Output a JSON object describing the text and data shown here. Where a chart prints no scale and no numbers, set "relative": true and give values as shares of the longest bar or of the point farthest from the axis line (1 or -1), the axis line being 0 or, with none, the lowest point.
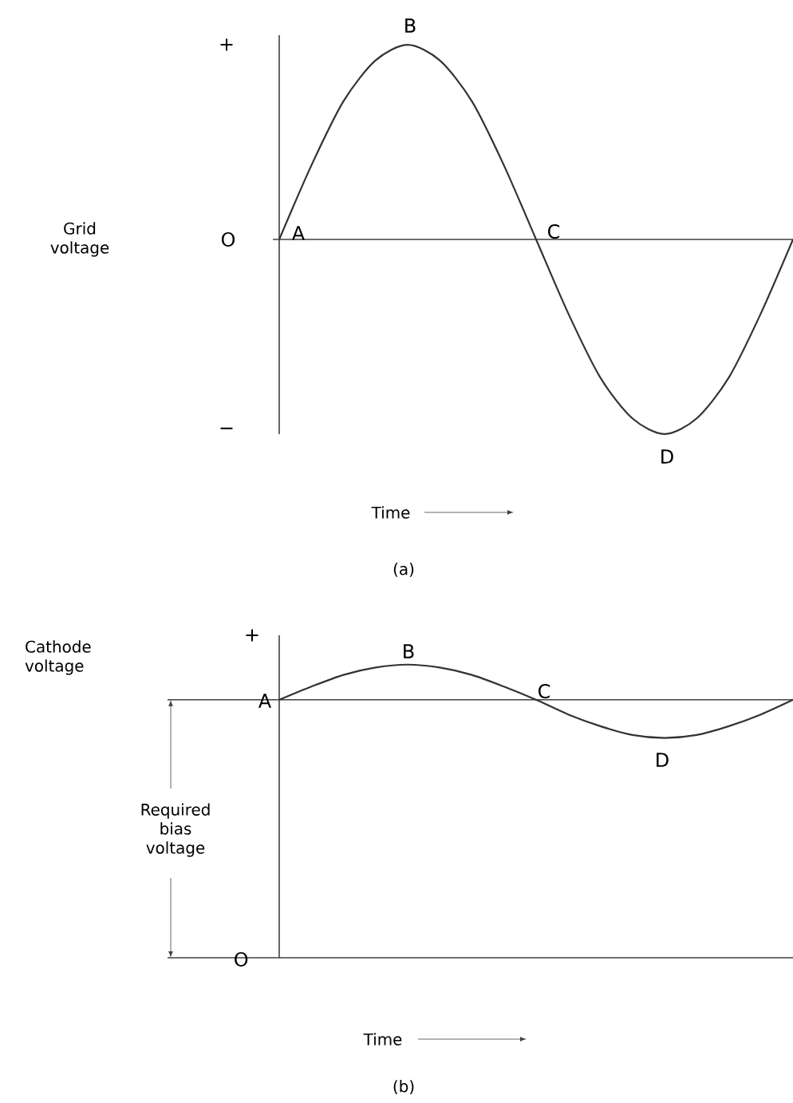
{
  "chart_data": [
    {
      "type": "line",
      "relative": true,
      "title": "(a)",
      "ylabel": "Grid voltage",
      "xlabel": "Time",
      "categories": [
        null,
        null,
        null,
        null,
        null,
        null,
        null,
        null,
        null,
        null,
        null,
        null,
        null,
        null,
        null,
        null,
        null
      ],
      "series": [
        {
          "color": "#333333",
          "values": [
            0,
            0.38,
            0.71,
            0.92,
            1,
            0.92,
            0.71,
            0.38,
            0,
            -0.38,
            -0.71,
            -0.92,
            -1,
            -0.92,
            -0.71,
            -0.38,
            0
          ]
        }
      ],
      "annotations": [
        "+",
        "O",
        "−",
        "A",
        "B",
        "C",
        "D"
      ]
    },
    {
      "type": "line",
      "relative": true,
      "title": "(b)",
      "ylabel": "Cathode voltage",
      "xlabel": "Time",
      "categories": [
        null,
        null,
        null,
        null,
        null,
        null,
        null,
        null,
        null,
        null,
        null,
        null,
        null,
        null,
        null,
        null,
        null
      ],
      "series": [
        {
          "color": "#333333",
          "values": [
            0.88,
            0.925,
            0.965,
            0.99,
            1,
            0.99,
            0.965,
            0.925,
            0.88,
            0.83,
            0.79,
            0.76,
            0.75,
            0.76,
            0.79,
            0.83,
            0.88
          ]
        }
      ],
      "ref_lines": [
        {
          "axis": "y",
          "value": 0.88
        }
      ],
      "annotations": [
        "+",
        "O",
        "A",
        "B",
        "C",
        "D",
        "Required bias voltage"
      ]
    }
  ]
}
